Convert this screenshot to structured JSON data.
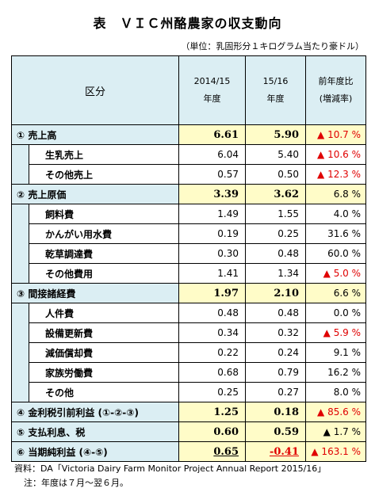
{
  "title": "表　ＶＩＣ州酪農家の収支動向",
  "unit": "（単位：乳固形分１キログラム当たり豪ドル）",
  "header": {
    "category": "区分",
    "year1_line1": "2014/15",
    "year1_line2": "年度",
    "year2_line1": "15/16",
    "year2_line2": "年度",
    "rate_line1": "前年度比",
    "rate_line2": "(増減率)"
  },
  "rows": [
    {
      "label": "① 売上高",
      "v1": "6.61",
      "v2": "5.90",
      "rate": "▲ 10.7 %",
      "red": true
    },
    {
      "label": "生乳売上",
      "v1": "6.04",
      "v2": "5.40",
      "rate": "▲ 10.6 %",
      "red": true
    },
    {
      "label": "その他売上",
      "v1": "0.57",
      "v2": "0.50",
      "rate": "▲ 12.3 %",
      "red": true
    },
    {
      "label": "② 売上原価",
      "v1": "3.39",
      "v2": "3.62",
      "rate": "6.8 %",
      "red": false
    },
    {
      "label": "飼料費",
      "v1": "1.49",
      "v2": "1.55",
      "rate": "4.0 %",
      "red": false
    },
    {
      "label": "かんがい用水費",
      "v1": "0.19",
      "v2": "0.25",
      "rate": "31.6 %",
      "red": false
    },
    {
      "label": "乾草調達費",
      "v1": "0.30",
      "v2": "0.48",
      "rate": "60.0 %",
      "red": false
    },
    {
      "label": "その他費用",
      "v1": "1.41",
      "v2": "1.34",
      "rate": "▲ 5.0 %",
      "red": true
    },
    {
      "label": "③ 間接諸経費",
      "v1": "1.97",
      "v2": "2.10",
      "rate": "6.6 %",
      "red": false
    },
    {
      "label": "人件費",
      "v1": "0.48",
      "v2": "0.48",
      "rate": "0.0 %",
      "red": false
    },
    {
      "label": "設備更新費",
      "v1": "0.34",
      "v2": "0.32",
      "rate": "▲ 5.9 %",
      "red": true
    },
    {
      "label": "減価償却費",
      "v1": "0.22",
      "v2": "0.24",
      "rate": "9.1 %",
      "red": false
    },
    {
      "label": "家族労働費",
      "v1": "0.68",
      "v2": "0.79",
      "rate": "16.2 %",
      "red": false
    },
    {
      "label": "その他",
      "v1": "0.25",
      "v2": "0.27",
      "rate": "8.0 %",
      "red": false
    },
    {
      "label": "④ 金利税引前利益 (①-②-③)",
      "v1": "1.25",
      "v2": "0.18",
      "rate": "▲ 85.6 %",
      "red": true
    },
    {
      "label": "⑤ 支払利息、税",
      "v1": "0.60",
      "v2": "0.59",
      "rate": "▲ 1.7 %",
      "red": false
    },
    {
      "label": "⑥ 当期純利益 (④-⑤)",
      "v1": "0.65",
      "v2": "-0.41",
      "rate": "▲ 163.1 %",
      "red": true
    }
  ],
  "footer": {
    "source": "資料：DA「Victoria Dairy Farm Monitor Project Annual Report 2015/16」",
    "note": "注：年度は７月～翌６月。"
  }
}
